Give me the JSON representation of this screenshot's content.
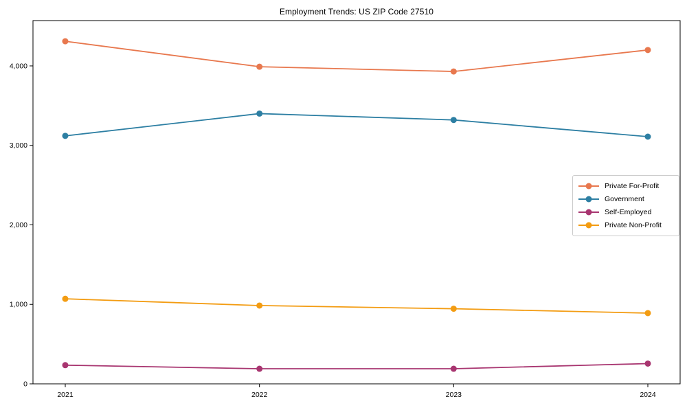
{
  "chart_data": {
    "type": "line",
    "title": "Employment Trends: US ZIP Code 27510",
    "categories": [
      "2021",
      "2022",
      "2023",
      "2024"
    ],
    "series": [
      {
        "name": "Private For-Profit",
        "color": "#e8784e",
        "values": [
          4310,
          3990,
          3930,
          4200
        ]
      },
      {
        "name": "Government",
        "color": "#2d7fa3",
        "values": [
          3120,
          3400,
          3320,
          3110
        ]
      },
      {
        "name": "Self-Employed",
        "color": "#a83570",
        "values": [
          235,
          190,
          190,
          255
        ]
      },
      {
        "name": "Private Non-Profit",
        "color": "#f39c12",
        "values": [
          1070,
          985,
          945,
          890
        ]
      }
    ],
    "xlabel": "",
    "ylabel": "",
    "ylim": [
      0,
      4570
    ],
    "yticks": {
      "values": [
        0,
        1000,
        2000,
        3000,
        4000
      ],
      "labels": [
        "0",
        "1,000",
        "2,000",
        "3,000",
        "4,000"
      ]
    },
    "grid": false,
    "marker": "circle",
    "legend_position": "center-right",
    "axis_color": "#000000",
    "tick_label_color": "#000000"
  }
}
